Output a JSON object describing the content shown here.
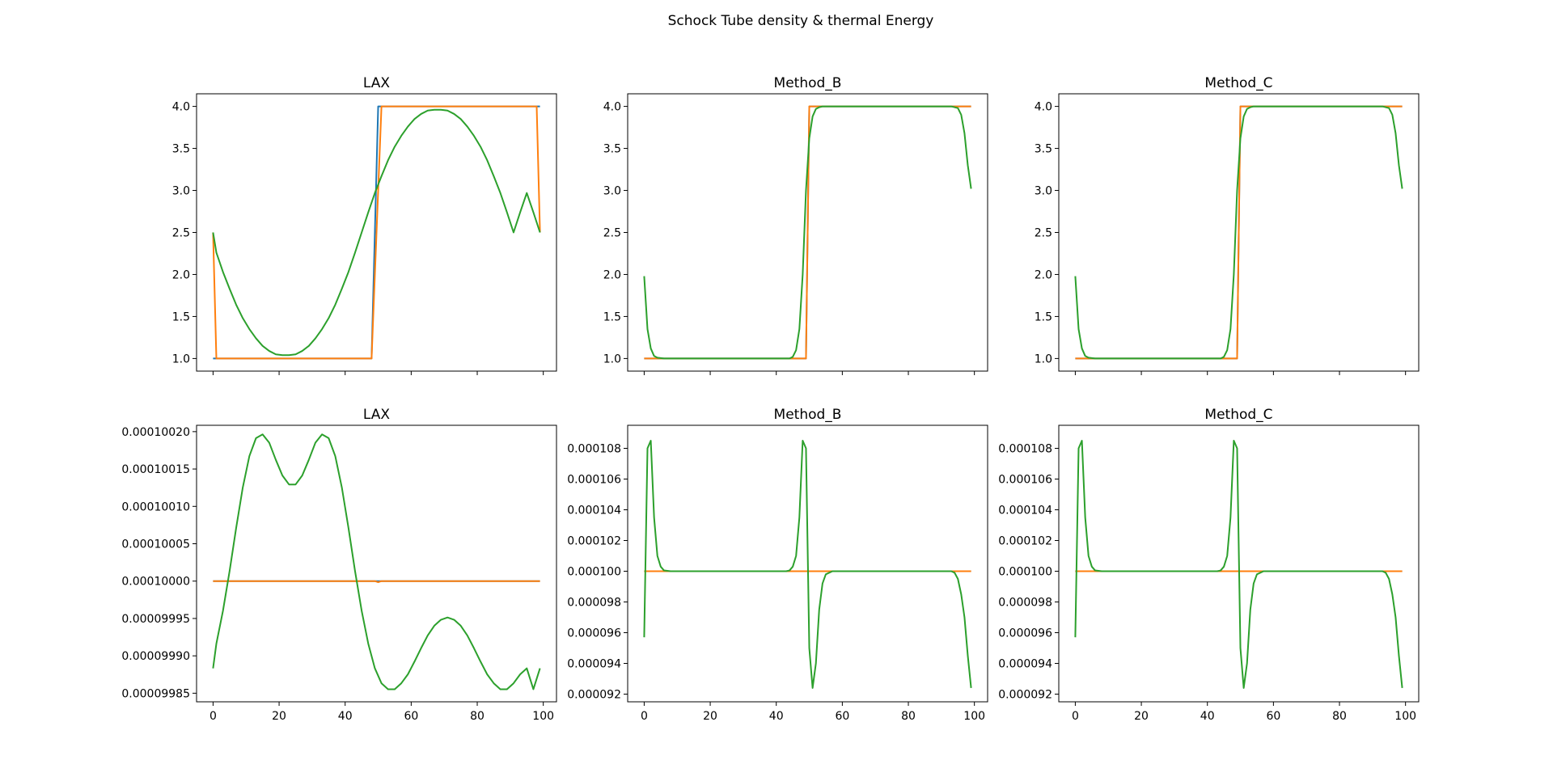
{
  "figure": {
    "title": "Schock Tube density & thermal Energy"
  },
  "colors": {
    "blue": "#1f77b4",
    "orange": "#ff7f0e",
    "green": "#2ca02c",
    "axis": "#000000"
  },
  "x_ticks": [
    "0",
    "20",
    "40",
    "60",
    "80",
    "100"
  ],
  "chart_data": [
    {
      "type": "line",
      "title": "LAX",
      "xlim": [
        -5,
        104
      ],
      "ylim": [
        0.85,
        4.15
      ],
      "y_ticks": [
        "1.0",
        "1.5",
        "2.0",
        "2.5",
        "3.0",
        "3.5",
        "4.0"
      ],
      "show_x_labels": false,
      "series": [
        {
          "color": "blue",
          "x": [
            0,
            48,
            50,
            99
          ],
          "y": [
            1.0,
            1.0,
            4.0,
            4.0
          ]
        },
        {
          "color": "orange",
          "x": [
            0,
            1,
            48,
            51,
            98,
            99
          ],
          "y": [
            2.5,
            1.0,
            1.0,
            4.0,
            4.0,
            2.5
          ]
        },
        {
          "color": "green",
          "x": [
            0,
            1,
            3,
            5,
            7,
            9,
            11,
            13,
            15,
            17,
            19,
            21,
            23,
            25,
            27,
            29,
            31,
            33,
            35,
            37,
            39,
            41,
            43,
            45,
            47,
            49,
            51,
            53,
            55,
            57,
            59,
            61,
            63,
            65,
            67,
            69,
            71,
            73,
            75,
            77,
            79,
            81,
            83,
            85,
            87,
            89,
            91,
            93,
            95,
            97,
            99
          ],
          "y": [
            2.5,
            2.26,
            2.03,
            1.83,
            1.64,
            1.48,
            1.35,
            1.24,
            1.15,
            1.09,
            1.05,
            1.04,
            1.04,
            1.05,
            1.09,
            1.15,
            1.24,
            1.35,
            1.48,
            1.64,
            1.83,
            2.03,
            2.26,
            2.5,
            2.74,
            2.97,
            3.17,
            3.36,
            3.52,
            3.65,
            3.76,
            3.85,
            3.91,
            3.95,
            3.96,
            3.96,
            3.95,
            3.91,
            3.85,
            3.76,
            3.65,
            3.52,
            3.36,
            3.17,
            2.97,
            2.74,
            2.5,
            2.74,
            2.97,
            2.74,
            2.5
          ]
        }
      ]
    },
    {
      "type": "line",
      "title": "Method_B",
      "xlim": [
        -5,
        104
      ],
      "ylim": [
        0.85,
        4.15
      ],
      "y_ticks": [
        "1.0",
        "1.5",
        "2.0",
        "2.5",
        "3.0",
        "3.5",
        "4.0"
      ],
      "show_x_labels": false,
      "series": [
        {
          "color": "blue",
          "x": [
            0,
            49,
            50,
            99
          ],
          "y": [
            1.0,
            1.0,
            4.0,
            4.0
          ]
        },
        {
          "color": "orange",
          "x": [
            0,
            49,
            50,
            99
          ],
          "y": [
            1.0,
            1.0,
            4.0,
            4.0
          ]
        },
        {
          "color": "green",
          "x": [
            0,
            1,
            2,
            3,
            4,
            6,
            44,
            45,
            46,
            47,
            48,
            49,
            50,
            51,
            52,
            53,
            54,
            56,
            93,
            95,
            96,
            97,
            98,
            99
          ],
          "y": [
            1.98,
            1.35,
            1.12,
            1.03,
            1.01,
            1.0,
            1.0,
            1.02,
            1.1,
            1.35,
            2.0,
            3.0,
            3.62,
            3.88,
            3.97,
            3.99,
            4.0,
            4.0,
            4.0,
            3.98,
            3.9,
            3.68,
            3.3,
            3.02
          ]
        }
      ]
    },
    {
      "type": "line",
      "title": "Method_C",
      "xlim": [
        -5,
        104
      ],
      "ylim": [
        0.85,
        4.15
      ],
      "y_ticks": [
        "1.0",
        "1.5",
        "2.0",
        "2.5",
        "3.0",
        "3.5",
        "4.0"
      ],
      "show_x_labels": false,
      "series": [
        {
          "color": "blue",
          "x": [
            0,
            49,
            50,
            99
          ],
          "y": [
            1.0,
            1.0,
            4.0,
            4.0
          ]
        },
        {
          "color": "orange",
          "x": [
            0,
            49,
            50,
            99
          ],
          "y": [
            1.0,
            1.0,
            4.0,
            4.0
          ]
        },
        {
          "color": "green",
          "x": [
            0,
            1,
            2,
            3,
            4,
            6,
            44,
            45,
            46,
            47,
            48,
            49,
            50,
            51,
            52,
            53,
            54,
            56,
            93,
            95,
            96,
            97,
            98,
            99
          ],
          "y": [
            1.98,
            1.35,
            1.12,
            1.03,
            1.01,
            1.0,
            1.0,
            1.02,
            1.1,
            1.35,
            2.0,
            3.0,
            3.62,
            3.88,
            3.97,
            3.99,
            4.0,
            4.0,
            4.0,
            3.98,
            3.9,
            3.68,
            3.3,
            3.02
          ]
        }
      ]
    },
    {
      "type": "line",
      "title": "LAX",
      "xlim": [
        -5,
        104
      ],
      "ylim": [
        9.98385e-05,
        0.0001002085
      ],
      "y_ticks": [
        "0.00009985",
        "0.00009990",
        "0.00009995",
        "0.00010000",
        "0.00010005",
        "0.00010010",
        "0.00010015",
        "0.00010020"
      ],
      "show_x_labels": true,
      "series": [
        {
          "color": "blue",
          "x": [
            0,
            99
          ],
          "y": [
            0.0001,
            0.0001
          ]
        },
        {
          "color": "orange",
          "x": [
            0,
            49,
            50,
            51,
            99
          ],
          "y": [
            0.0001,
            0.0001,
            9.99985e-05,
            0.0001,
            0.0001
          ]
        },
        {
          "color": "green",
          "x": [
            0,
            1,
            3,
            5,
            7,
            9,
            11,
            13,
            15,
            17,
            19,
            21,
            23,
            25,
            27,
            29,
            31,
            33,
            35,
            37,
            39,
            41,
            43,
            45,
            47,
            49,
            51,
            53,
            55,
            57,
            59,
            61,
            63,
            65,
            67,
            69,
            71,
            73,
            75,
            77,
            79,
            81,
            83,
            85,
            87,
            89,
            91,
            93,
            95,
            97,
            99
          ],
          "y": [
            9.98833e-05,
            9.99163e-05,
            9.99603e-05,
            0.0001000133,
            0.0001000713,
            0.0001001253,
            0.0001001673,
            0.0001001913,
            0.0001001963,
            0.0001001853,
            0.0001001623,
            0.0001001413,
            0.0001001293,
            0.0001001293,
            0.0001001413,
            0.0001001623,
            0.0001001853,
            0.0001001963,
            0.0001001913,
            0.0001001673,
            0.0001001253,
            0.0001000713,
            0.0001000133,
            9.99603e-05,
            9.99163e-05,
            9.98833e-05,
            9.98633e-05,
            9.98553e-05,
            9.98553e-05,
            9.98633e-05,
            9.98753e-05,
            9.98923e-05,
            9.99103e-05,
            9.99273e-05,
            9.99403e-05,
            9.99483e-05,
            9.99513e-05,
            9.99483e-05,
            9.99403e-05,
            9.99273e-05,
            9.99103e-05,
            9.98923e-05,
            9.98753e-05,
            9.98633e-05,
            9.98553e-05,
            9.98553e-05,
            9.98633e-05,
            9.98753e-05,
            9.98833e-05,
            9.98553e-05,
            9.98833e-05
          ]
        }
      ]
    },
    {
      "type": "line",
      "title": "Method_B",
      "xlim": [
        -5,
        104
      ],
      "ylim": [
        9.15e-05,
        0.0001095
      ],
      "y_ticks": [
        "0.000092",
        "0.000094",
        "0.000096",
        "0.000098",
        "0.000100",
        "0.000102",
        "0.000104",
        "0.000106",
        "0.000108"
      ],
      "show_x_labels": true,
      "series": [
        {
          "color": "blue",
          "x": [
            0,
            99
          ],
          "y": [
            0.0001,
            0.0001
          ]
        },
        {
          "color": "orange",
          "x": [
            0,
            99
          ],
          "y": [
            0.0001,
            0.0001
          ]
        },
        {
          "color": "green",
          "x": [
            0,
            1,
            2,
            3,
            4,
            5,
            6,
            8,
            43,
            44,
            45,
            46,
            47,
            48,
            49,
            50,
            51,
            52,
            53,
            54,
            55,
            57,
            93,
            94,
            95,
            96,
            97,
            98,
            99
          ],
          "y": [
            9.57e-05,
            0.000108,
            0.0001085,
            0.0001035,
            0.000101,
            0.0001003,
            0.00010005,
            0.0001,
            0.0001,
            0.00010005,
            0.0001003,
            0.000101,
            0.0001035,
            0.0001085,
            0.000108,
            9.5e-05,
            9.24e-05,
            9.4e-05,
            9.75e-05,
            9.92e-05,
            9.98e-05,
            0.0001,
            0.0001,
            9.99e-05,
            9.95e-05,
            9.85e-05,
            9.7e-05,
            9.45e-05,
            9.24e-05
          ]
        }
      ]
    },
    {
      "type": "line",
      "title": "Method_C",
      "xlim": [
        -5,
        104
      ],
      "ylim": [
        9.15e-05,
        0.0001095
      ],
      "y_ticks": [
        "0.000092",
        "0.000094",
        "0.000096",
        "0.000098",
        "0.000100",
        "0.000102",
        "0.000104",
        "0.000106",
        "0.000108"
      ],
      "show_x_labels": true,
      "series": [
        {
          "color": "blue",
          "x": [
            0,
            99
          ],
          "y": [
            0.0001,
            0.0001
          ]
        },
        {
          "color": "orange",
          "x": [
            0,
            99
          ],
          "y": [
            0.0001,
            0.0001
          ]
        },
        {
          "color": "green",
          "x": [
            0,
            1,
            2,
            3,
            4,
            5,
            6,
            8,
            43,
            44,
            45,
            46,
            47,
            48,
            49,
            50,
            51,
            52,
            53,
            54,
            55,
            57,
            93,
            94,
            95,
            96,
            97,
            98,
            99
          ],
          "y": [
            9.57e-05,
            0.000108,
            0.0001085,
            0.0001035,
            0.000101,
            0.0001003,
            0.00010005,
            0.0001,
            0.0001,
            0.00010005,
            0.0001003,
            0.000101,
            0.0001035,
            0.0001085,
            0.000108,
            9.5e-05,
            9.24e-05,
            9.4e-05,
            9.75e-05,
            9.92e-05,
            9.98e-05,
            0.0001,
            0.0001,
            9.99e-05,
            9.95e-05,
            9.85e-05,
            9.7e-05,
            9.45e-05,
            9.24e-05
          ]
        }
      ]
    }
  ]
}
